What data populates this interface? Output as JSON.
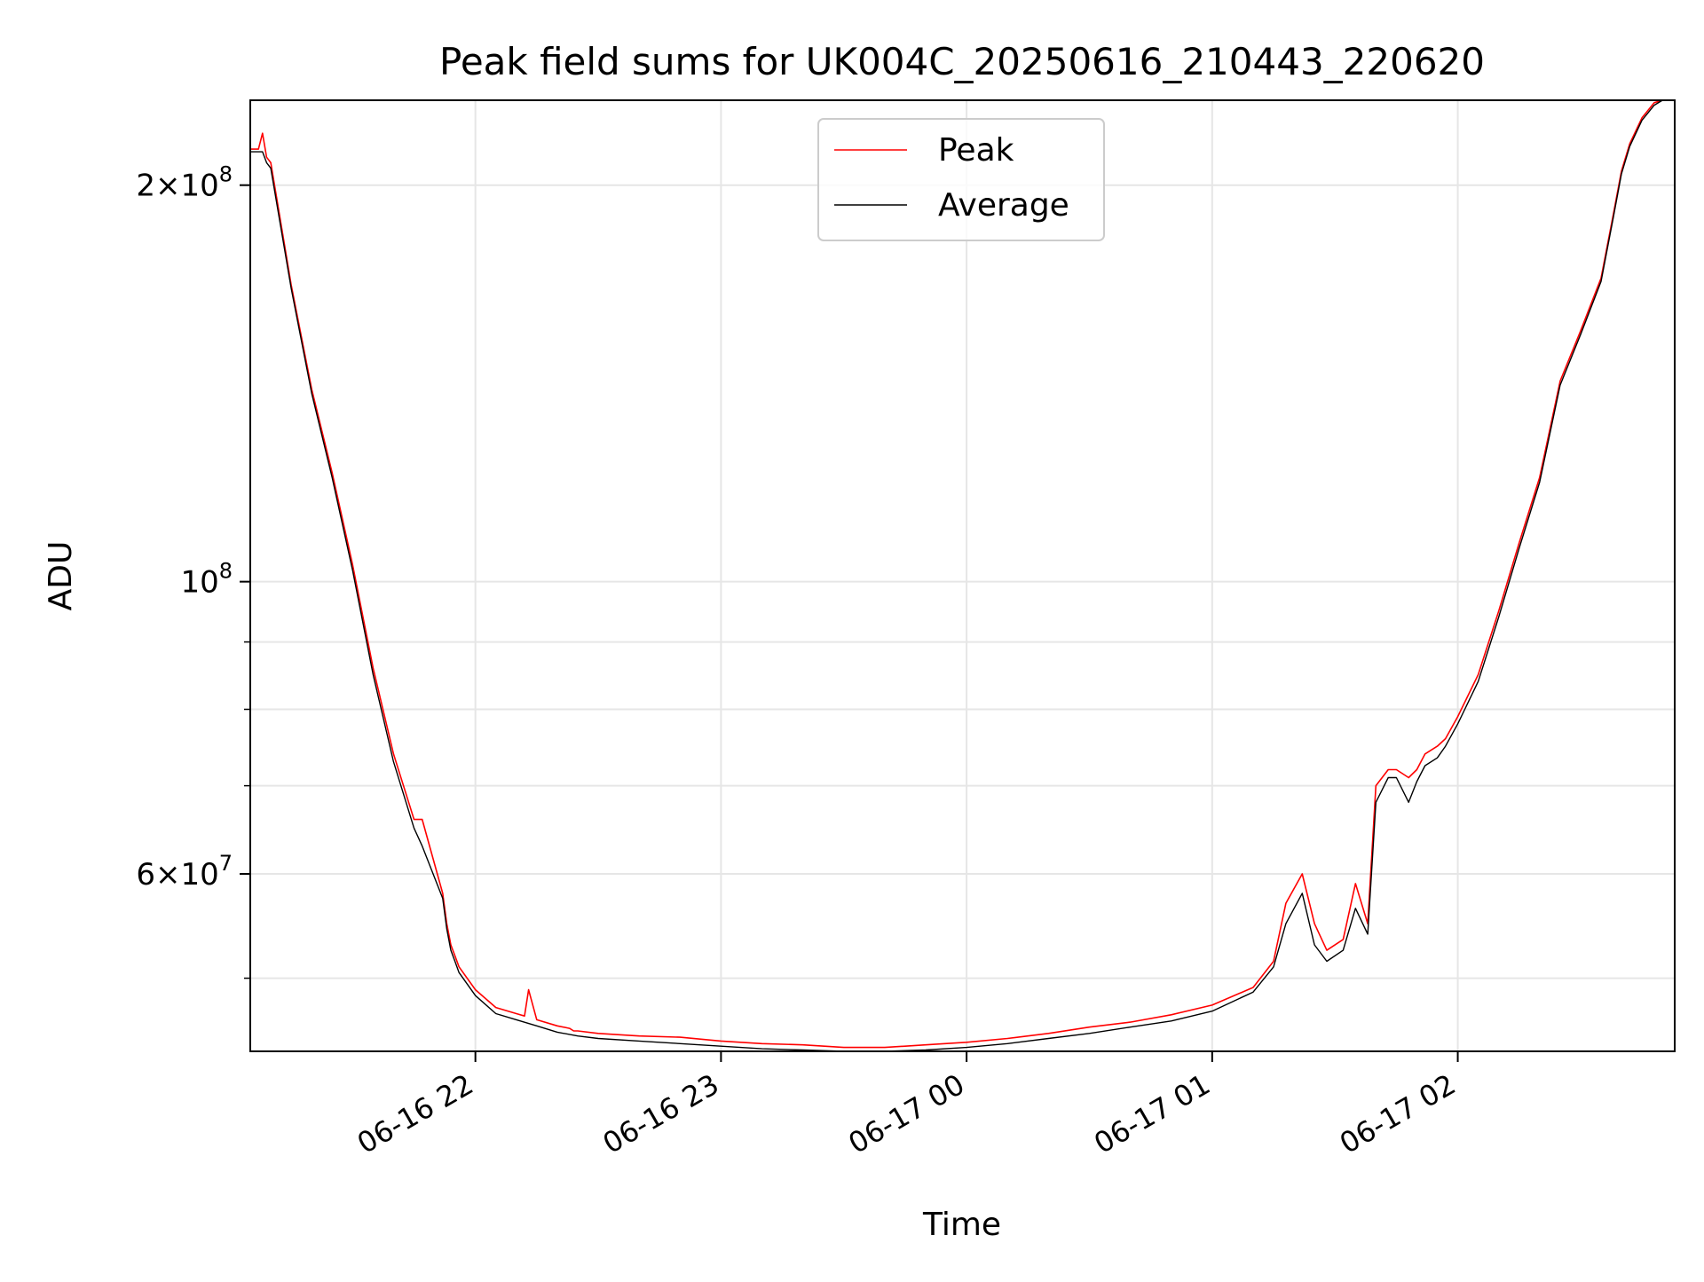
{
  "chart_data": {
    "type": "line",
    "title": "Peak field sums for UK004C_20250616_210443_220620",
    "xlabel": "Time",
    "ylabel": "ADU",
    "y_scale": "log",
    "ylim": [
      44000000,
      232000000
    ],
    "xlim": [
      "2025-06-16 21:05",
      "2025-06-17 02:53"
    ],
    "x_ticks": [
      "2025-06-16 22:00",
      "2025-06-16 23:00",
      "2025-06-17 00:00",
      "2025-06-17 01:00",
      "2025-06-17 02:00"
    ],
    "x_tick_labels": [
      "06-16 22",
      "06-16 23",
      "06-17 00",
      "06-17 01",
      "06-17 02"
    ],
    "y_ticks": [
      60000000,
      100000000,
      200000000
    ],
    "y_tick_labels": [
      {
        "base": "6",
        "times": "×",
        "power": "10",
        "exp": "7"
      },
      {
        "base": "",
        "times": "",
        "power": "10",
        "exp": "8"
      },
      {
        "base": "2",
        "times": "×",
        "power": "10",
        "exp": "8"
      }
    ],
    "grid": true,
    "legend": {
      "position": "top-center",
      "entries": [
        "Peak",
        "Average"
      ]
    },
    "colors": {
      "peak": "#ff0000",
      "average": "#000000",
      "grid": "#e6e6e6"
    },
    "series": [
      {
        "name": "Peak",
        "x": [
          "2025-06-16 21:05",
          "2025-06-16 21:07",
          "2025-06-16 21:08",
          "2025-06-16 21:09",
          "2025-06-16 21:10",
          "2025-06-16 21:15",
          "2025-06-16 21:20",
          "2025-06-16 21:25",
          "2025-06-16 21:30",
          "2025-06-16 21:35",
          "2025-06-16 21:40",
          "2025-06-16 21:45",
          "2025-06-16 21:47",
          "2025-06-16 21:52",
          "2025-06-16 21:53",
          "2025-06-16 21:54",
          "2025-06-16 21:55",
          "2025-06-16 21:56",
          "2025-06-16 22:00",
          "2025-06-16 22:05",
          "2025-06-16 22:10",
          "2025-06-16 22:12",
          "2025-06-16 22:13",
          "2025-06-16 22:15",
          "2025-06-16 22:20",
          "2025-06-16 22:23",
          "2025-06-16 22:24",
          "2025-06-16 22:25",
          "2025-06-16 22:30",
          "2025-06-16 22:40",
          "2025-06-16 22:50",
          "2025-06-16 23:00",
          "2025-06-16 23:10",
          "2025-06-16 23:20",
          "2025-06-16 23:30",
          "2025-06-16 23:40",
          "2025-06-16 23:50",
          "2025-06-17 00:00",
          "2025-06-17 00:10",
          "2025-06-17 00:20",
          "2025-06-17 00:30",
          "2025-06-17 00:40",
          "2025-06-17 00:50",
          "2025-06-17 01:00",
          "2025-06-17 01:10",
          "2025-06-17 01:15",
          "2025-06-17 01:18",
          "2025-06-17 01:22",
          "2025-06-17 01:25",
          "2025-06-17 01:28",
          "2025-06-17 01:32",
          "2025-06-17 01:35",
          "2025-06-17 01:38",
          "2025-06-17 01:40",
          "2025-06-17 01:43",
          "2025-06-17 01:45",
          "2025-06-17 01:48",
          "2025-06-17 01:50",
          "2025-06-17 01:52",
          "2025-06-17 01:55",
          "2025-06-17 01:57",
          "2025-06-17 02:00",
          "2025-06-17 02:05",
          "2025-06-17 02:10",
          "2025-06-17 02:15",
          "2025-06-17 02:20",
          "2025-06-17 02:25",
          "2025-06-17 02:30",
          "2025-06-17 02:35",
          "2025-06-17 02:38",
          "2025-06-17 02:40",
          "2025-06-17 02:42",
          "2025-06-17 02:45",
          "2025-06-17 02:48",
          "2025-06-17 02:50",
          "2025-06-17 02:53"
        ],
        "y": [
          213000000,
          213000000,
          219000000,
          210000000,
          208000000,
          168000000,
          140000000,
          121000000,
          103000000,
          86000000,
          74000000,
          66000000,
          66000000,
          58000000,
          55000000,
          53000000,
          52000000,
          51000000,
          49000000,
          47500000,
          47000000,
          46800000,
          49000000,
          46500000,
          46000000,
          45800000,
          45600000,
          45600000,
          45400000,
          45200000,
          45100000,
          44800000,
          44600000,
          44500000,
          44300000,
          44300000,
          44500000,
          44700000,
          45000000,
          45400000,
          45900000,
          46300000,
          46900000,
          47700000,
          49200000,
          51500000,
          57000000,
          60000000,
          55000000,
          52500000,
          53500000,
          59000000,
          55000000,
          70000000,
          72000000,
          72000000,
          71000000,
          72000000,
          74000000,
          75000000,
          76000000,
          79000000,
          85000000,
          95000000,
          107000000,
          120000000,
          142000000,
          155000000,
          170000000,
          190000000,
          205000000,
          215000000,
          225000000,
          231000000,
          232000000,
          232000000
        ]
      },
      {
        "name": "Average",
        "x": [
          "2025-06-16 21:05",
          "2025-06-16 21:07",
          "2025-06-16 21:08",
          "2025-06-16 21:09",
          "2025-06-16 21:10",
          "2025-06-16 21:15",
          "2025-06-16 21:20",
          "2025-06-16 21:25",
          "2025-06-16 21:30",
          "2025-06-16 21:35",
          "2025-06-16 21:40",
          "2025-06-16 21:45",
          "2025-06-16 21:47",
          "2025-06-16 21:52",
          "2025-06-16 21:53",
          "2025-06-16 21:54",
          "2025-06-16 21:55",
          "2025-06-16 21:56",
          "2025-06-16 22:00",
          "2025-06-16 22:05",
          "2025-06-16 22:10",
          "2025-06-16 22:15",
          "2025-06-16 22:20",
          "2025-06-16 22:25",
          "2025-06-16 22:30",
          "2025-06-16 22:40",
          "2025-06-16 22:50",
          "2025-06-16 23:00",
          "2025-06-16 23:10",
          "2025-06-16 23:20",
          "2025-06-16 23:30",
          "2025-06-16 23:40",
          "2025-06-16 23:50",
          "2025-06-17 00:00",
          "2025-06-17 00:10",
          "2025-06-17 00:20",
          "2025-06-17 00:30",
          "2025-06-17 00:40",
          "2025-06-17 00:50",
          "2025-06-17 01:00",
          "2025-06-17 01:10",
          "2025-06-17 01:15",
          "2025-06-17 01:18",
          "2025-06-17 01:22",
          "2025-06-17 01:25",
          "2025-06-17 01:28",
          "2025-06-17 01:32",
          "2025-06-17 01:35",
          "2025-06-17 01:38",
          "2025-06-17 01:40",
          "2025-06-17 01:43",
          "2025-06-17 01:45",
          "2025-06-17 01:48",
          "2025-06-17 01:50",
          "2025-06-17 01:52",
          "2025-06-17 01:55",
          "2025-06-17 01:57",
          "2025-06-17 02:00",
          "2025-06-17 02:05",
          "2025-06-17 02:10",
          "2025-06-17 02:15",
          "2025-06-17 02:20",
          "2025-06-17 02:25",
          "2025-06-17 02:30",
          "2025-06-17 02:35",
          "2025-06-17 02:38",
          "2025-06-17 02:40",
          "2025-06-17 02:42",
          "2025-06-17 02:45",
          "2025-06-17 02:48",
          "2025-06-17 02:50",
          "2025-06-17 02:53"
        ],
        "y": [
          212000000,
          212000000,
          212000000,
          208000000,
          206000000,
          167000000,
          139000000,
          120000000,
          102000000,
          85000000,
          73000000,
          65000000,
          63000000,
          57500000,
          54500000,
          52500000,
          51500000,
          50500000,
          48500000,
          47000000,
          46500000,
          46000000,
          45500000,
          45200000,
          45000000,
          44800000,
          44600000,
          44400000,
          44200000,
          44100000,
          44000000,
          44000000,
          44100000,
          44300000,
          44600000,
          45000000,
          45400000,
          45900000,
          46400000,
          47200000,
          48800000,
          51000000,
          55000000,
          58000000,
          53000000,
          51500000,
          52500000,
          56500000,
          54000000,
          68000000,
          71000000,
          71000000,
          68000000,
          70500000,
          72500000,
          73500000,
          75000000,
          78000000,
          84000000,
          94000000,
          106000000,
          119000000,
          141000000,
          154000000,
          169000000,
          189000000,
          204000000,
          214000000,
          224000000,
          230000000,
          232000000,
          232000000
        ]
      }
    ]
  }
}
